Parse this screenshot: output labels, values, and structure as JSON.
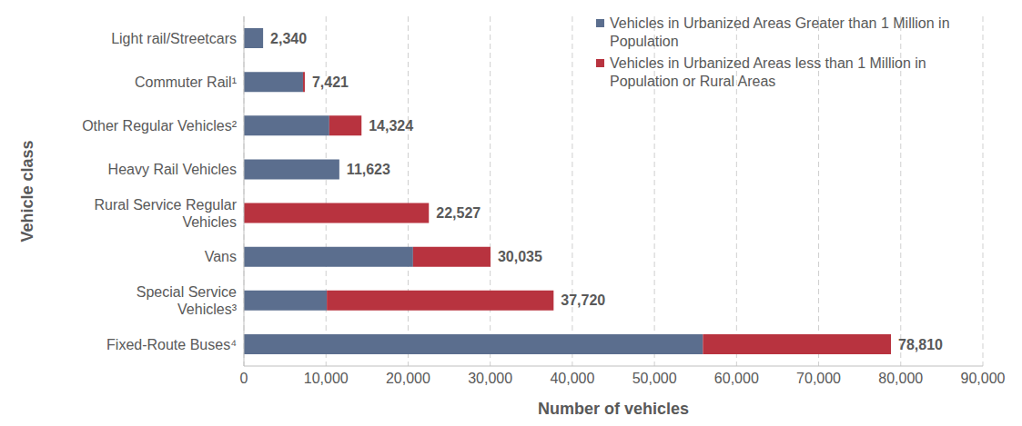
{
  "chart_data": {
    "type": "bar",
    "orientation": "horizontal",
    "stacked": true,
    "x_label": "Number of vehicles",
    "y_label": "Vehicle class",
    "categories": [
      "Light rail/Streetcars",
      "Commuter Rail¹",
      "Other Regular Vehicles²",
      "Heavy Rail Vehicles",
      "Rural Service Regular Vehicles",
      "Vans",
      "Special Service Vehicles³",
      "Fixed-Route Buses⁴"
    ],
    "series": [
      {
        "name": "Vehicles in Urbanized Areas Greater than 1 Million in Population",
        "color": "#5b6e8e",
        "values": [
          2340,
          7200,
          10400,
          11623,
          0,
          20600,
          10100,
          55900
        ]
      },
      {
        "name": "Vehicles in Urbanized Areas less than 1 Million in Population or Rural Areas",
        "color": "#b8333f",
        "values": [
          0,
          221,
          3924,
          0,
          22527,
          9435,
          27620,
          22910
        ]
      }
    ],
    "totals": [
      2340,
      7421,
      14324,
      11623,
      22527,
      30035,
      37720,
      78810
    ],
    "total_labels": [
      "2,340",
      "7,421",
      "14,324",
      "11,623",
      "22,527",
      "30,035",
      "37,720",
      "78,810"
    ],
    "xlim": [
      0,
      90000
    ],
    "xticks": [
      0,
      {
        "value": 10000,
        "label": "10,000"
      },
      {
        "value": 20000,
        "label": "20,000"
      },
      {
        "value": 30000,
        "label": "30,000"
      },
      {
        "value": 40000,
        "label": "40,000"
      },
      {
        "value": 50000,
        "label": "50,000"
      },
      {
        "value": 60000,
        "label": "60,000"
      },
      {
        "value": 70000,
        "label": "70,000"
      },
      {
        "value": 80000,
        "label": "80,000"
      },
      {
        "value": 90000,
        "label": "90,000"
      }
    ],
    "grid": true,
    "legend": "top-right",
    "data_labels": true
  }
}
